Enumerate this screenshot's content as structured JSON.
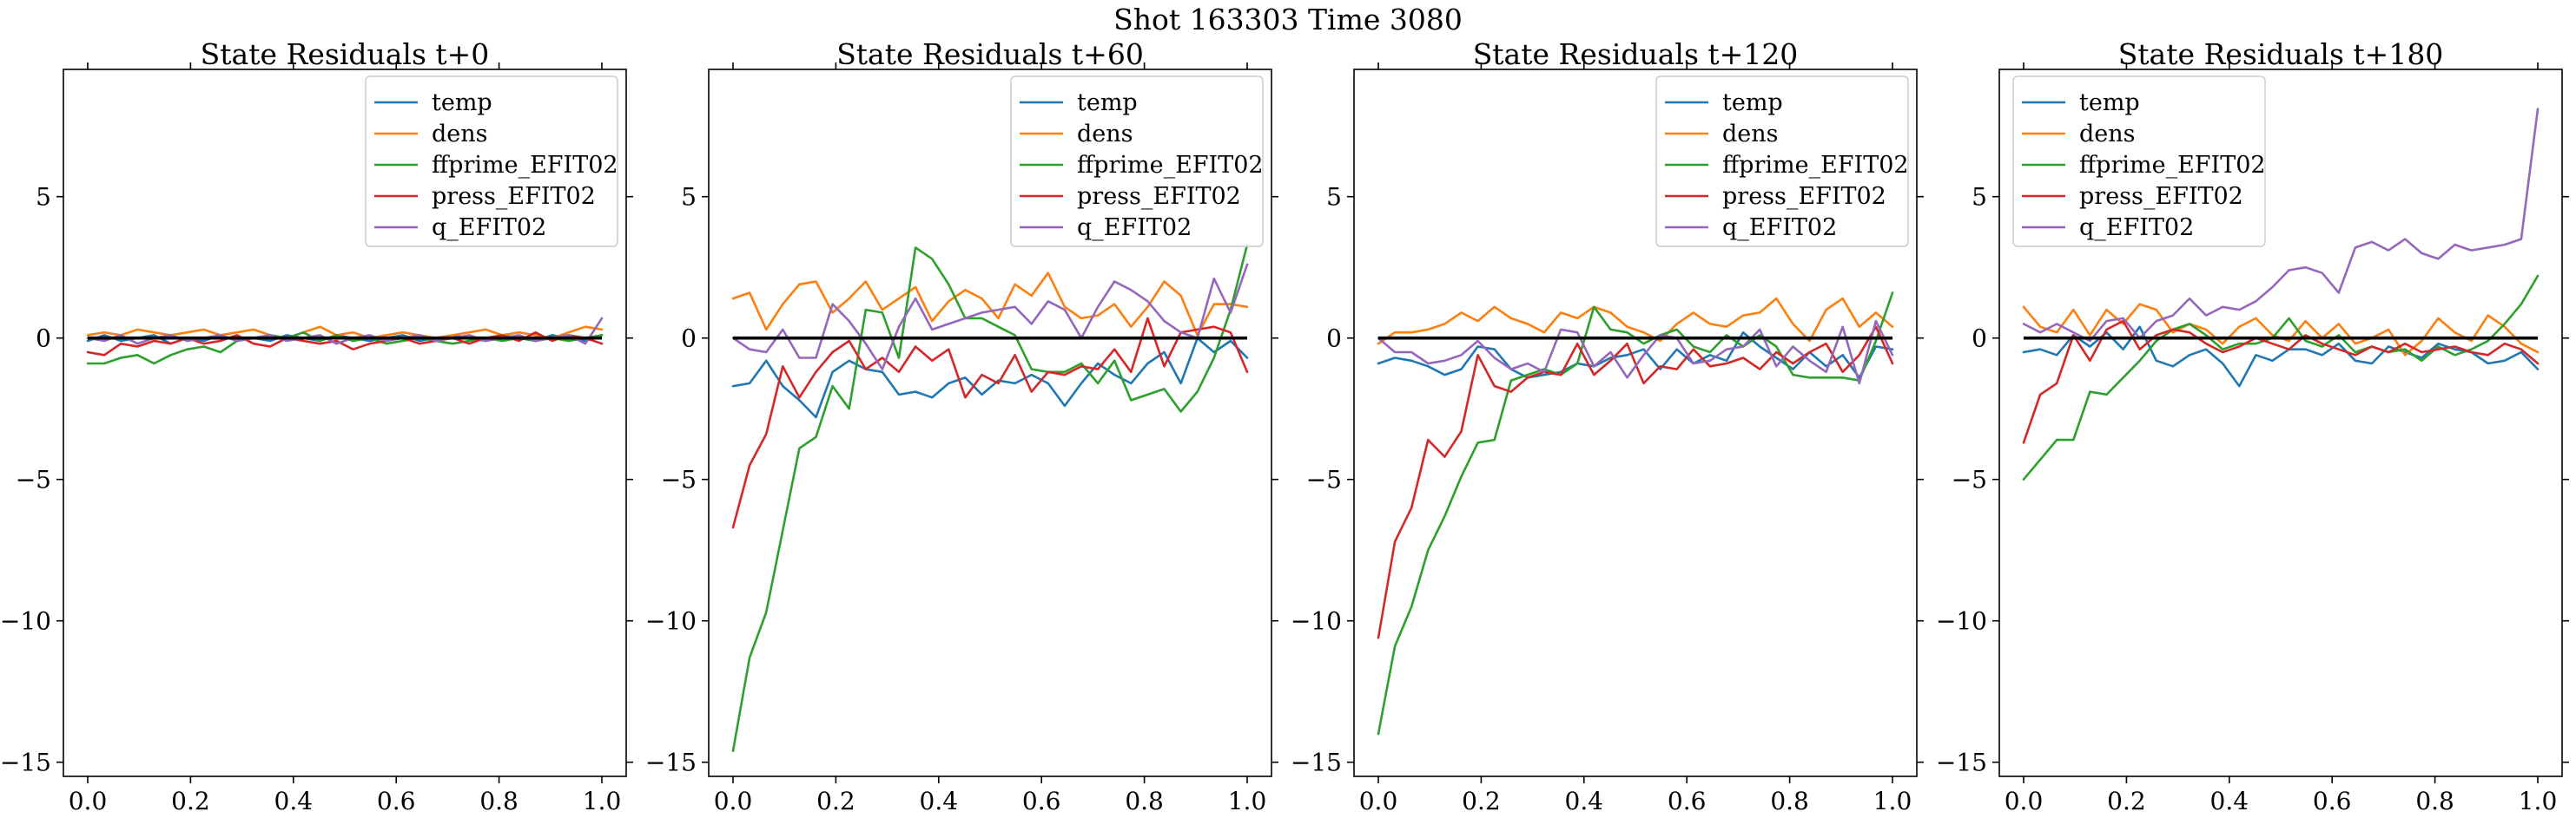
{
  "suptitle": "Shot 163303   Time 3080",
  "chart_data": [
    {
      "type": "line",
      "title": "State Residuals t+0",
      "legend_position": "top-right",
      "xlim": [
        0,
        1
      ],
      "ylim": [
        -15.5,
        9.5
      ],
      "xticks": [
        0.0,
        0.2,
        0.4,
        0.6,
        0.8,
        1.0
      ],
      "xtick_labels": [
        "0.0",
        "0.2",
        "0.4",
        "0.6",
        "0.8",
        "1.0"
      ],
      "yticks": [
        -15,
        -10,
        -5,
        0,
        5
      ],
      "ytick_labels": [
        "−15",
        "−10",
        "−5",
        "0",
        "5"
      ],
      "zero_line": true,
      "series": [
        {
          "name": "temp",
          "color": "#1f77b4",
          "values": [
            -0.1,
            0.1,
            -0.1,
            0.0,
            0.1,
            -0.2,
            0.0,
            -0.1,
            0.1,
            -0.1,
            0.0,
            -0.1,
            0.1,
            0.0,
            -0.1,
            0.1,
            0.0,
            -0.1,
            0.0,
            0.1,
            -0.1,
            0.0,
            0.1,
            0.0,
            -0.1,
            0.1,
            0.0,
            -0.1,
            0.1,
            0.0,
            -0.1,
            0.1
          ]
        },
        {
          "name": "dens",
          "color": "#ff7f0e",
          "values": [
            0.1,
            0.2,
            0.1,
            0.3,
            0.2,
            0.1,
            0.2,
            0.3,
            0.1,
            0.2,
            0.3,
            0.1,
            0.0,
            0.2,
            0.4,
            0.1,
            0.2,
            0.0,
            0.1,
            0.2,
            0.1,
            0.0,
            0.1,
            0.2,
            0.3,
            0.1,
            0.2,
            0.1,
            0.0,
            0.2,
            0.4,
            0.3
          ]
        },
        {
          "name": "ffprime_EFIT02",
          "color": "#2ca02c",
          "values": [
            -0.9,
            -0.9,
            -0.7,
            -0.6,
            -0.9,
            -0.6,
            -0.4,
            -0.3,
            -0.5,
            -0.1,
            0.0,
            0.1,
            0.0,
            0.2,
            -0.1,
            0.1,
            -0.1,
            0.0,
            -0.2,
            -0.1,
            0.0,
            -0.1,
            -0.2,
            -0.1,
            0.0,
            -0.1,
            0.0,
            -0.1,
            0.0,
            -0.1,
            0.0,
            0.1
          ]
        },
        {
          "name": "press_EFIT02",
          "color": "#d62728",
          "values": [
            -0.5,
            -0.6,
            -0.2,
            -0.3,
            -0.1,
            -0.2,
            0.0,
            -0.2,
            -0.1,
            0.1,
            -0.2,
            -0.3,
            0.0,
            -0.1,
            -0.2,
            -0.1,
            -0.4,
            -0.2,
            -0.1,
            0.0,
            -0.2,
            -0.1,
            0.0,
            -0.2,
            0.0,
            0.1,
            -0.1,
            0.2,
            -0.1,
            0.1,
            0.0,
            -0.2
          ]
        },
        {
          "name": "q_EFIT02",
          "color": "#9467bd",
          "values": [
            0.0,
            -0.1,
            0.1,
            -0.2,
            0.0,
            0.1,
            -0.1,
            0.0,
            0.1,
            -0.1,
            0.0,
            0.1,
            -0.1,
            0.0,
            0.1,
            -0.2,
            0.0,
            0.1,
            -0.1,
            0.0,
            0.1,
            -0.1,
            0.0,
            0.1,
            -0.1,
            0.0,
            0.1,
            -0.1,
            0.0,
            0.1,
            -0.2,
            0.7
          ]
        }
      ]
    },
    {
      "type": "line",
      "title": "State Residuals t+60",
      "legend_position": "top-right",
      "xlim": [
        0,
        1
      ],
      "ylim": [
        -15.5,
        9.5
      ],
      "xticks": [
        0.0,
        0.2,
        0.4,
        0.6,
        0.8,
        1.0
      ],
      "xtick_labels": [
        "0.0",
        "0.2",
        "0.4",
        "0.6",
        "0.8",
        "1.0"
      ],
      "yticks": [
        -15,
        -10,
        -5,
        0,
        5
      ],
      "ytick_labels": [
        "−15",
        "−10",
        "−5",
        "0",
        "5"
      ],
      "zero_line": true,
      "series": [
        {
          "name": "temp",
          "color": "#1f77b4",
          "values": [
            -1.7,
            -1.6,
            -0.8,
            -1.7,
            -2.2,
            -2.8,
            -1.2,
            -0.8,
            -1.1,
            -1.2,
            -2.0,
            -1.9,
            -2.1,
            -1.6,
            -1.4,
            -2.0,
            -1.5,
            -1.6,
            -1.3,
            -1.6,
            -2.4,
            -1.6,
            -0.9,
            -1.3,
            -1.6,
            -0.9,
            -0.5,
            -1.6,
            0.0,
            -0.5,
            -0.1,
            -0.7
          ]
        },
        {
          "name": "dens",
          "color": "#ff7f0e",
          "values": [
            1.4,
            1.6,
            0.3,
            1.2,
            1.9,
            2.0,
            0.9,
            1.4,
            2.0,
            1.0,
            1.4,
            1.8,
            0.6,
            1.3,
            1.7,
            1.4,
            0.7,
            1.9,
            1.5,
            2.3,
            1.1,
            0.7,
            0.8,
            1.2,
            0.4,
            1.1,
            2.0,
            1.5,
            0.1,
            1.2,
            1.2,
            1.1
          ]
        },
        {
          "name": "ffprime_EFIT02",
          "color": "#2ca02c",
          "values": [
            -14.6,
            -11.3,
            -9.7,
            -6.8,
            -3.9,
            -3.5,
            -1.7,
            -2.5,
            1.0,
            0.9,
            -0.7,
            3.2,
            2.8,
            1.9,
            0.7,
            0.7,
            0.4,
            0.1,
            -1.1,
            -1.2,
            -1.2,
            -0.9,
            -1.6,
            -0.8,
            -2.2,
            -2.0,
            -1.8,
            -2.6,
            -1.9,
            -0.7,
            1.0,
            3.3
          ]
        },
        {
          "name": "press_EFIT02",
          "color": "#d62728",
          "values": [
            -6.7,
            -4.5,
            -3.4,
            -1.0,
            -2.1,
            -1.2,
            -0.5,
            -0.1,
            -1.1,
            -0.7,
            -1.2,
            -0.3,
            -0.8,
            -0.4,
            -2.1,
            -1.3,
            -1.6,
            -0.6,
            -1.9,
            -1.2,
            -1.3,
            -1.0,
            -1.1,
            -0.4,
            -1.2,
            0.7,
            -1.0,
            0.2,
            0.3,
            0.4,
            0.2,
            -1.2
          ]
        },
        {
          "name": "q_EFIT02",
          "color": "#9467bd",
          "values": [
            0.0,
            -0.4,
            -0.5,
            0.3,
            -0.7,
            -0.7,
            1.2,
            0.6,
            -0.2,
            -1.1,
            0.4,
            1.4,
            0.3,
            0.5,
            0.7,
            0.9,
            1.0,
            1.1,
            0.5,
            1.3,
            1.0,
            0.0,
            1.1,
            2.0,
            1.7,
            1.3,
            0.6,
            0.2,
            0.0,
            2.1,
            0.9,
            2.6
          ]
        }
      ]
    },
    {
      "type": "line",
      "title": "State Residuals t+120",
      "legend_position": "top-right",
      "xlim": [
        0,
        1
      ],
      "ylim": [
        -15.5,
        9.5
      ],
      "xticks": [
        0.0,
        0.2,
        0.4,
        0.6,
        0.8,
        1.0
      ],
      "xtick_labels": [
        "0.0",
        "0.2",
        "0.4",
        "0.6",
        "0.8",
        "1.0"
      ],
      "yticks": [
        -15,
        -10,
        -5,
        0,
        5
      ],
      "ytick_labels": [
        "−15",
        "−10",
        "−5",
        "0",
        "5"
      ],
      "zero_line": true,
      "series": [
        {
          "name": "temp",
          "color": "#1f77b4",
          "values": [
            -0.9,
            -0.7,
            -0.8,
            -1.0,
            -1.3,
            -1.1,
            -0.3,
            -0.4,
            -1.1,
            -1.4,
            -1.3,
            -1.2,
            -0.9,
            -1.0,
            -0.7,
            -0.6,
            -0.4,
            -1.1,
            -0.4,
            -0.9,
            -0.6,
            -0.8,
            0.2,
            -0.3,
            -0.7,
            -1.1,
            -0.5,
            -1.0,
            -0.6,
            -1.4,
            -0.3,
            -0.4
          ]
        },
        {
          "name": "dens",
          "color": "#ff7f0e",
          "values": [
            -0.2,
            0.2,
            0.2,
            0.3,
            0.5,
            0.9,
            0.6,
            1.1,
            0.7,
            0.5,
            0.2,
            0.9,
            0.7,
            1.1,
            0.9,
            0.4,
            0.2,
            -0.1,
            0.5,
            0.9,
            0.5,
            0.4,
            0.8,
            0.9,
            1.4,
            0.5,
            -0.1,
            1.0,
            1.4,
            0.4,
            0.9,
            0.4
          ]
        },
        {
          "name": "ffprime_EFIT02",
          "color": "#2ca02c",
          "values": [
            -14.0,
            -10.9,
            -9.5,
            -7.5,
            -6.3,
            -4.9,
            -3.7,
            -3.6,
            -1.5,
            -1.3,
            -1.1,
            -1.3,
            -0.9,
            1.1,
            0.3,
            0.2,
            -0.2,
            0.1,
            0.3,
            -0.3,
            -0.5,
            0.1,
            -0.3,
            0.1,
            -0.3,
            -1.3,
            -1.4,
            -1.4,
            -1.4,
            -1.5,
            -0.1,
            1.6
          ]
        },
        {
          "name": "press_EFIT02",
          "color": "#d62728",
          "values": [
            -10.6,
            -7.2,
            -6.0,
            -3.6,
            -4.2,
            -3.3,
            -0.6,
            -1.7,
            -1.9,
            -1.4,
            -1.2,
            -1.3,
            -0.2,
            -1.3,
            -0.8,
            -0.2,
            -1.6,
            -1.0,
            -1.1,
            -0.4,
            -1.0,
            -0.9,
            -0.7,
            -1.1,
            -0.5,
            -0.9,
            -0.5,
            -0.2,
            -1.2,
            -0.6,
            0.4,
            -0.9
          ]
        },
        {
          "name": "q_EFIT02",
          "color": "#9467bd",
          "values": [
            0.0,
            -0.5,
            -0.5,
            -0.9,
            -0.8,
            -0.6,
            -0.1,
            -0.7,
            -1.1,
            -0.9,
            -1.2,
            0.3,
            0.2,
            -1.0,
            -0.5,
            -1.4,
            -0.6,
            0.1,
            0.0,
            -0.9,
            -0.8,
            -0.4,
            -0.3,
            0.3,
            -1.0,
            -0.3,
            -0.8,
            -1.2,
            0.4,
            -1.6,
            0.6,
            -0.6
          ]
        }
      ]
    },
    {
      "type": "line",
      "title": "State Residuals t+180",
      "legend_position": "top-left",
      "xlim": [
        0,
        1
      ],
      "ylim": [
        -15.5,
        9.5
      ],
      "xticks": [
        0.0,
        0.2,
        0.4,
        0.6,
        0.8,
        1.0
      ],
      "xtick_labels": [
        "0.0",
        "0.2",
        "0.4",
        "0.6",
        "0.8",
        "1.0"
      ],
      "yticks": [
        -15,
        -10,
        -5,
        0,
        5
      ],
      "ytick_labels": [
        "−15",
        "−10",
        "−5",
        "0",
        "5"
      ],
      "zero_line": true,
      "series": [
        {
          "name": "temp",
          "color": "#1f77b4",
          "values": [
            -0.5,
            -0.4,
            -0.6,
            0.1,
            -0.3,
            0.2,
            -0.4,
            0.4,
            -0.8,
            -1.0,
            -0.6,
            -0.4,
            -0.9,
            -1.7,
            -0.6,
            -0.8,
            -0.4,
            -0.4,
            -0.6,
            -0.2,
            -0.8,
            -0.9,
            -0.3,
            -0.5,
            -0.7,
            -0.2,
            -0.4,
            -0.5,
            -0.9,
            -0.8,
            -0.5,
            -1.1
          ]
        },
        {
          "name": "dens",
          "color": "#ff7f0e",
          "values": [
            1.1,
            0.4,
            0.2,
            1.0,
            0.1,
            1.0,
            0.5,
            1.2,
            1.0,
            0.2,
            0.5,
            0.3,
            -0.2,
            0.4,
            0.7,
            0.1,
            -0.1,
            0.6,
            0.0,
            0.5,
            -0.2,
            0.0,
            0.3,
            -0.6,
            -0.1,
            0.7,
            0.2,
            -0.1,
            0.8,
            0.4,
            -0.2,
            -0.5
          ]
        },
        {
          "name": "ffprime_EFIT02",
          "color": "#2ca02c",
          "values": [
            -5.0,
            -4.3,
            -3.6,
            -3.6,
            -1.9,
            -2.0,
            -1.4,
            -0.8,
            -0.1,
            0.3,
            0.5,
            0.1,
            -0.4,
            -0.2,
            -0.2,
            0.0,
            0.7,
            -0.1,
            -0.3,
            0.1,
            -0.5,
            -0.3,
            -0.5,
            -0.4,
            -0.8,
            -0.3,
            -0.6,
            -0.4,
            -0.1,
            0.5,
            1.2,
            2.2
          ]
        },
        {
          "name": "press_EFIT02",
          "color": "#d62728",
          "values": [
            -3.7,
            -2.0,
            -1.6,
            0.1,
            -0.8,
            0.3,
            0.6,
            -0.4,
            0.1,
            0.3,
            0.2,
            -0.2,
            -0.5,
            -0.3,
            0.0,
            -0.2,
            -0.4,
            0.1,
            -0.2,
            -0.4,
            -0.6,
            -0.3,
            -0.5,
            -0.2,
            -0.5,
            -0.4,
            -0.3,
            -0.5,
            -0.6,
            -0.2,
            -0.4,
            -0.9
          ]
        },
        {
          "name": "q_EFIT02",
          "color": "#9467bd",
          "values": [
            0.5,
            0.2,
            0.5,
            0.2,
            -0.1,
            0.6,
            0.7,
            0.0,
            0.6,
            0.8,
            1.4,
            0.8,
            1.1,
            1.0,
            1.3,
            1.8,
            2.4,
            2.5,
            2.3,
            1.6,
            3.2,
            3.4,
            3.1,
            3.5,
            3.0,
            2.8,
            3.3,
            3.1,
            3.2,
            3.3,
            3.5,
            8.1
          ]
        }
      ]
    }
  ]
}
